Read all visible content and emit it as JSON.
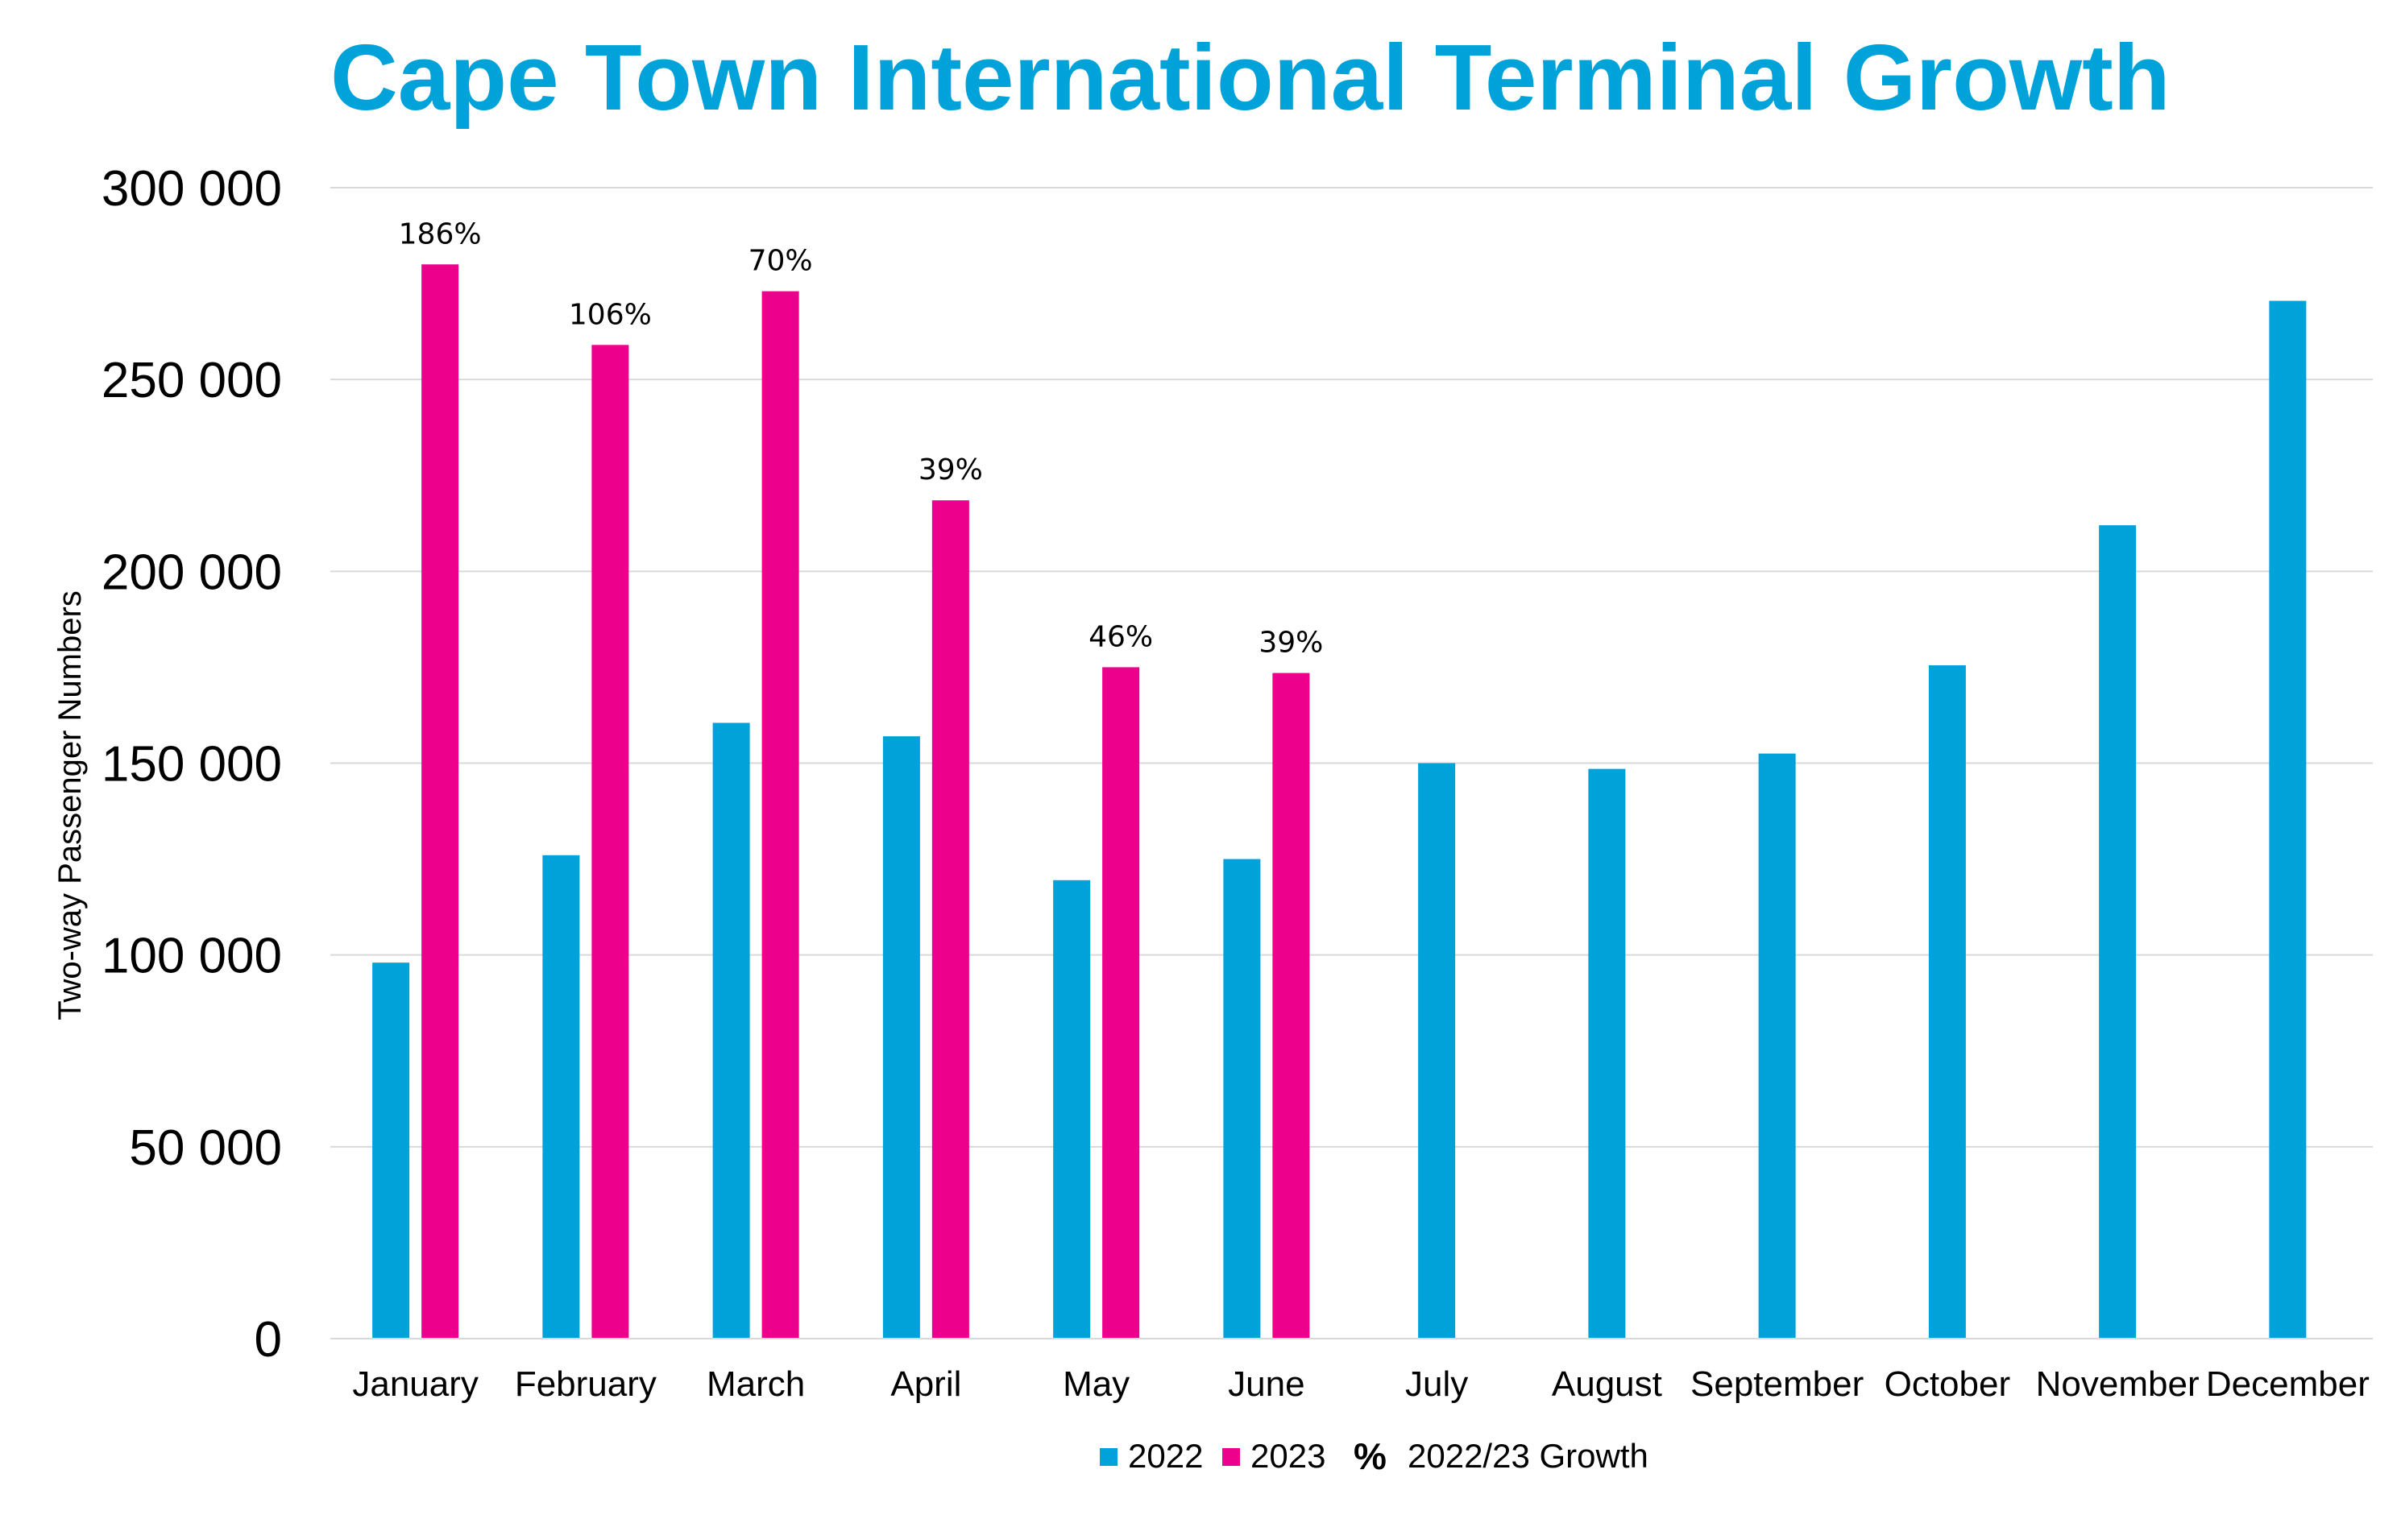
{
  "chart_data": {
    "type": "bar",
    "title": "Cape Town International Terminal Growth",
    "xlabel": "",
    "ylabel": "Two-way Passenger Numbers",
    "ylim": [
      0,
      300000
    ],
    "yticks": [
      0,
      50000,
      100000,
      150000,
      200000,
      250000,
      300000
    ],
    "ytick_labels": [
      "0",
      "50 000",
      "100 000",
      "150 000",
      "200 000",
      "250 000",
      "300 000"
    ],
    "grid": true,
    "legend_position": "bottom",
    "categories": [
      "January",
      "February",
      "March",
      "April",
      "May",
      "June",
      "July",
      "August",
      "September",
      "October",
      "November",
      "December"
    ],
    "series": [
      {
        "name": "2022",
        "color": "#00a2da",
        "values": [
          98000,
          126000,
          160500,
          157000,
          119500,
          125000,
          150000,
          148500,
          152500,
          175500,
          212000,
          270500
        ]
      },
      {
        "name": "2023",
        "color": "#ec008c",
        "values": [
          280000,
          259000,
          273000,
          218500,
          175000,
          173500,
          null,
          null,
          null,
          null,
          null,
          null
        ]
      }
    ],
    "growth_labels": [
      "186%",
      "106%",
      "70%",
      "39%",
      "46%",
      "39%"
    ],
    "legend": {
      "items": [
        "2022",
        "2023"
      ],
      "growth_symbol": "%",
      "growth_text": "2022/23 Growth"
    }
  }
}
